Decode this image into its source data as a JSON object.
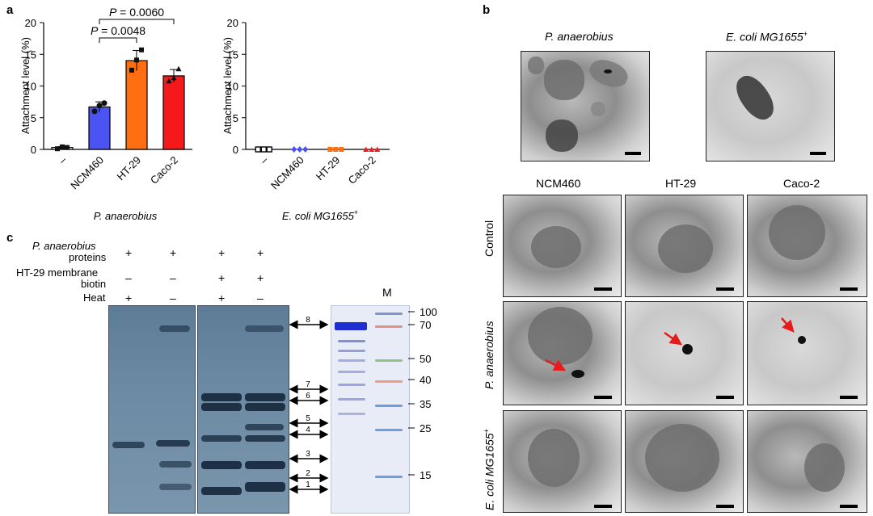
{
  "panel_labels": {
    "a": "a",
    "b": "b",
    "c": "c"
  },
  "chart_data": [
    {
      "type": "bar",
      "ylabel": "Attachment level (%)",
      "xlabel": "P. anaerobius",
      "categories": [
        "–",
        "NCM460",
        "HT-29",
        "Caco-2"
      ],
      "values": [
        0.3,
        6.7,
        14.0,
        11.6
      ],
      "points": [
        [
          0.1,
          0.4,
          0.3
        ],
        [
          6.0,
          6.9,
          7.3
        ],
        [
          12.5,
          14.1,
          15.7
        ],
        [
          10.8,
          11.3,
          12.7
        ]
      ],
      "errors": [
        0.15,
        0.8,
        1.6,
        1.0
      ],
      "colors": [
        "#ffffff",
        "#4b53f2",
        "#ff6e10",
        "#f5191b"
      ],
      "yticks": [
        "0",
        "5",
        "10",
        "15",
        "20"
      ],
      "ylim": [
        0,
        20
      ],
      "comparisons": [
        {
          "from": "NCM460",
          "to": "HT-29",
          "label": "P = 0.0048"
        },
        {
          "from": "NCM460",
          "to": "Caco-2",
          "label": "P = 0.0060"
        }
      ]
    },
    {
      "type": "scatter",
      "ylabel": "Attachment level (%)",
      "xlabel": "E. coli MG1655",
      "xlabel_sup": "+",
      "categories": [
        "–",
        "NCM460",
        "HT-29",
        "Caco-2"
      ],
      "values": [
        0,
        0,
        0,
        0
      ],
      "colors": [
        "#000000",
        "#4b53f2",
        "#ff6e10",
        "#f5191b"
      ],
      "markers": [
        "square",
        "diamond",
        "square",
        "triangle"
      ],
      "yticks": [
        "0",
        "5",
        "10",
        "15",
        "20"
      ],
      "ylim": [
        0,
        20
      ]
    }
  ],
  "panel_b": {
    "top_titles": [
      "P. anaerobius",
      "E. coli MG1655"
    ],
    "top_sup": "+",
    "col_titles": [
      "NCM460",
      "HT-29",
      "Caco-2"
    ],
    "row_titles": [
      "Control",
      "P. anaerobius",
      "E. coli MG1655"
    ],
    "row_sup": "+"
  },
  "panel_c": {
    "row_labels": {
      "proteins_1": "P. anaerobius",
      "proteins_2": "proteins",
      "membrane_1": "HT-29 membrane",
      "membrane_2": "biotin",
      "heat": "Heat"
    },
    "lanes": {
      "proteins": [
        "+",
        "+",
        "+",
        "+"
      ],
      "membrane": [
        "–",
        "–",
        "+",
        "+"
      ],
      "heat": [
        "+",
        "–",
        "+",
        "–"
      ]
    },
    "marker_label": "M",
    "mw": [
      "100",
      "70",
      "50",
      "40",
      "35",
      "25",
      "15"
    ],
    "bands": [
      "8",
      "7",
      "6",
      "5",
      "4",
      "3",
      "2",
      "1"
    ]
  }
}
